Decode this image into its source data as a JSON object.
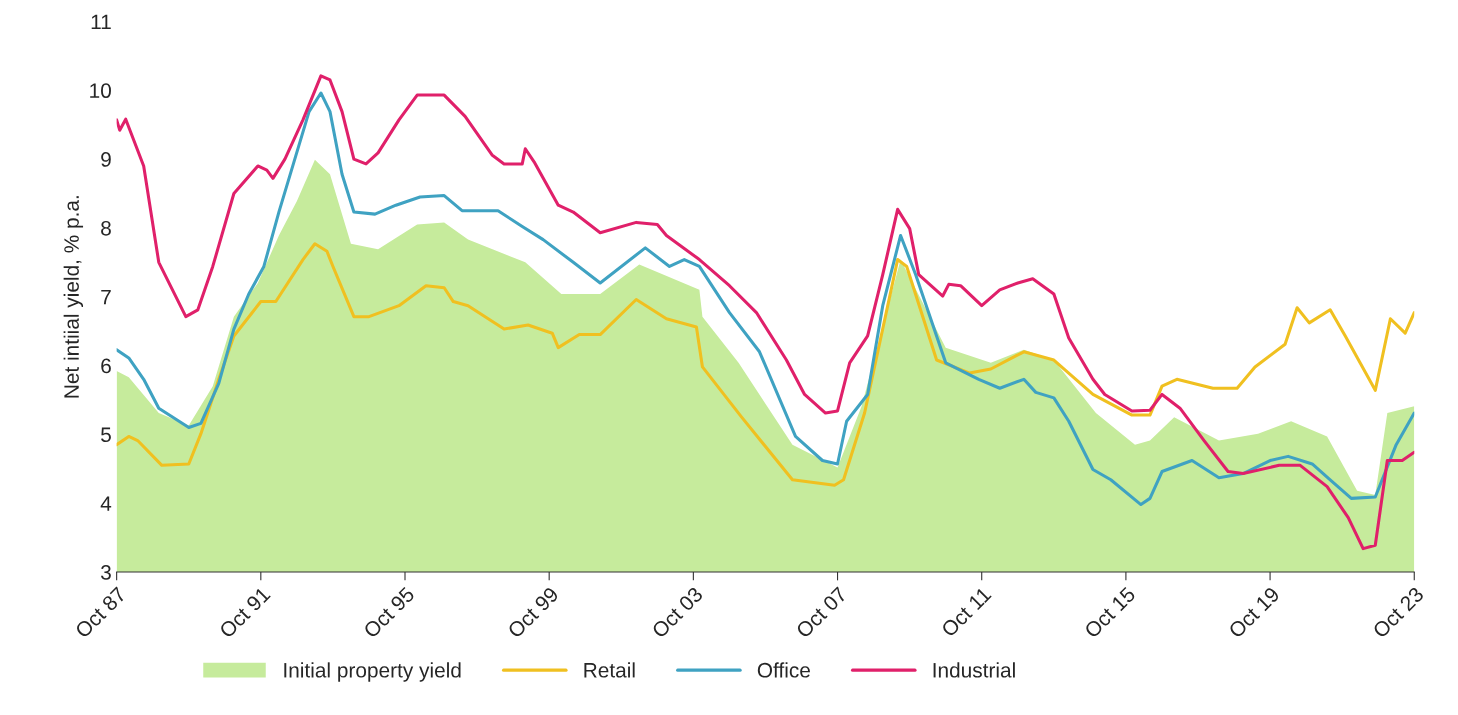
{
  "chart_data": {
    "type": "line",
    "ylabel": "Net intiial yield, % p.a.",
    "xlim": [
      "1987-10",
      "2023-10"
    ],
    "ylim": [
      3,
      11
    ],
    "yticks": [
      3,
      4,
      5,
      6,
      7,
      8,
      9,
      10,
      11
    ],
    "xticks": [
      {
        "value": "1987-10",
        "label": "Oct 87"
      },
      {
        "value": "1991-10",
        "label": "Oct 91"
      },
      {
        "value": "1995-10",
        "label": "Oct 95"
      },
      {
        "value": "1999-10",
        "label": "Oct 99"
      },
      {
        "value": "2003-10",
        "label": "Oct 03"
      },
      {
        "value": "2007-10",
        "label": "Oct 07"
      },
      {
        "value": "2011-10",
        "label": "Oct 11"
      },
      {
        "value": "2015-10",
        "label": "Oct 15"
      },
      {
        "value": "2019-10",
        "label": "Oct 19"
      },
      {
        "value": "2023-10",
        "label": "Oct 23"
      }
    ],
    "grid": false,
    "legend": "bottom",
    "series": [
      {
        "name": "Initial property yield",
        "type": "area",
        "color": "#c6eb9c",
        "x": [
          "1987-10",
          "1988-02",
          "1988-12",
          "1989-10",
          "1990-06",
          "1991-01",
          "1991-09",
          "1992-04",
          "1992-10",
          "1993-04",
          "1993-09",
          "1994-04",
          "1995-01",
          "1996-02",
          "1996-11",
          "1997-07",
          "1999-02",
          "2000-02",
          "2001-03",
          "2002-04",
          "2003-12",
          "2004-01",
          "2005-01",
          "2006-07",
          "2007-10",
          "2008-06",
          "2009-07",
          "2010-10",
          "2012-01",
          "2012-12",
          "2013-10",
          "2014-12",
          "2016-01",
          "2016-06",
          "2017-02",
          "2018-05",
          "2019-06",
          "2020-05",
          "2021-05",
          "2022-03",
          "2022-09",
          "2023-01",
          "2023-10"
        ],
        "values": [
          5.92,
          5.83,
          5.31,
          5.13,
          5.7,
          6.71,
          7.2,
          7.89,
          8.39,
          8.99,
          8.78,
          7.77,
          7.69,
          8.05,
          8.08,
          7.83,
          7.5,
          7.04,
          7.04,
          7.47,
          7.1,
          6.71,
          6.04,
          4.85,
          4.52,
          5.41,
          7.54,
          6.26,
          6.04,
          6.23,
          6.08,
          5.31,
          4.85,
          4.91,
          5.25,
          4.91,
          5.01,
          5.19,
          4.97,
          4.18,
          4.12,
          5.31,
          5.41
        ]
      },
      {
        "name": "Retail",
        "color": "#f0c020",
        "x": [
          "1987-10",
          "1988-02",
          "1988-05",
          "1989-01",
          "1989-10",
          "1990-02",
          "1990-08",
          "1991-01",
          "1991-10",
          "1992-03",
          "1992-12",
          "1993-04",
          "1993-08",
          "1993-10",
          "1994-05",
          "1994-10",
          "1995-08",
          "1996-05",
          "1996-11",
          "1997-02",
          "1997-07",
          "1998-07",
          "1999-03",
          "1999-11",
          "2000-01",
          "2000-08",
          "2001-03",
          "2002-03",
          "2003-01",
          "2003-11",
          "2004-01",
          "2005-02",
          "2006-07",
          "2007-09",
          "2007-12",
          "2008-07",
          "2009-06",
          "2009-09",
          "2010-07",
          "2011-06",
          "2012-01",
          "2012-12",
          "2013-10",
          "2014-11",
          "2015-12",
          "2016-06",
          "2016-10",
          "2017-03",
          "2018-03",
          "2018-11",
          "2019-05",
          "2020-03",
          "2020-07",
          "2020-11",
          "2021-06",
          "2021-11",
          "2022-09",
          "2023-02",
          "2023-07",
          "2023-10"
        ],
        "values": [
          4.85,
          4.97,
          4.91,
          4.55,
          4.57,
          5.01,
          5.8,
          6.43,
          6.93,
          6.93,
          7.54,
          7.77,
          7.66,
          7.44,
          6.71,
          6.71,
          6.87,
          7.16,
          7.13,
          6.93,
          6.87,
          6.53,
          6.59,
          6.47,
          6.26,
          6.45,
          6.45,
          6.96,
          6.68,
          6.56,
          5.98,
          5.25,
          4.34,
          4.26,
          4.34,
          5.31,
          7.54,
          7.44,
          6.08,
          5.89,
          5.95,
          6.2,
          6.08,
          5.58,
          5.28,
          5.28,
          5.7,
          5.8,
          5.67,
          5.67,
          5.98,
          6.31,
          6.84,
          6.62,
          6.81,
          6.43,
          5.64,
          6.68,
          6.47,
          6.77
        ]
      },
      {
        "name": "Office",
        "color": "#3fa2c2",
        "x": [
          "1987-10",
          "1988-02",
          "1988-07",
          "1988-12",
          "1989-10",
          "1990-02",
          "1990-08",
          "1991-01",
          "1991-06",
          "1991-11",
          "1992-04",
          "1992-09",
          "1993-02",
          "1993-06",
          "1993-09",
          "1994-01",
          "1994-05",
          "1994-12",
          "1995-07",
          "1996-03",
          "1996-11",
          "1997-05",
          "1998-05",
          "1999-01",
          "1999-08",
          "2000-06",
          "2001-03",
          "2002-06",
          "2003-02",
          "2003-07",
          "2003-12",
          "2004-10",
          "2005-08",
          "2006-08",
          "2007-05",
          "2007-10",
          "2008-01",
          "2008-08",
          "2009-01",
          "2009-07",
          "2009-12",
          "2010-10",
          "2011-09",
          "2012-04",
          "2012-12",
          "2013-04",
          "2013-10",
          "2014-03",
          "2014-11",
          "2015-05",
          "2016-03",
          "2016-06",
          "2016-10",
          "2017-08",
          "2018-05",
          "2019-01",
          "2019-10",
          "2020-04",
          "2020-12",
          "2021-06",
          "2022-01",
          "2022-09",
          "2023-04",
          "2023-10"
        ],
        "values": [
          6.23,
          6.11,
          5.8,
          5.38,
          5.1,
          5.16,
          5.74,
          6.53,
          7.04,
          7.44,
          8.23,
          8.96,
          9.69,
          9.96,
          9.69,
          8.78,
          8.23,
          8.2,
          8.33,
          8.45,
          8.47,
          8.25,
          8.25,
          8.02,
          7.83,
          7.5,
          7.2,
          7.71,
          7.44,
          7.54,
          7.44,
          6.77,
          6.2,
          4.97,
          4.62,
          4.57,
          5.19,
          5.58,
          6.87,
          7.89,
          7.32,
          6.04,
          5.8,
          5.67,
          5.8,
          5.61,
          5.53,
          5.19,
          4.49,
          4.34,
          3.98,
          4.07,
          4.46,
          4.62,
          4.37,
          4.43,
          4.62,
          4.68,
          4.57,
          4.34,
          4.07,
          4.09,
          4.85,
          5.31
        ]
      },
      {
        "name": "Industrial",
        "color": "#e0206a",
        "x": [
          "1987-10",
          "1987-11",
          "1988-01",
          "1988-07",
          "1988-12",
          "1989-09",
          "1990-01",
          "1990-06",
          "1991-01",
          "1991-09",
          "1991-12",
          "1992-02",
          "1992-06",
          "1992-12",
          "1993-06",
          "1993-09",
          "1994-01",
          "1994-05",
          "1994-09",
          "1995-01",
          "1995-08",
          "1996-02",
          "1996-11",
          "1997-06",
          "1998-03",
          "1998-07",
          "1999-01",
          "1999-02",
          "1999-05",
          "2000-01",
          "2000-06",
          "2001-03",
          "2002-03",
          "2002-10",
          "2003-01",
          "2003-12",
          "2004-10",
          "2005-07",
          "2006-05",
          "2006-11",
          "2007-06",
          "2007-10",
          "2008-02",
          "2008-08",
          "2009-01",
          "2009-06",
          "2009-10",
          "2010-01",
          "2010-09",
          "2010-11",
          "2011-03",
          "2011-10",
          "2012-04",
          "2012-10",
          "2013-03",
          "2013-10",
          "2014-03",
          "2014-11",
          "2015-03",
          "2015-12",
          "2016-06",
          "2016-10",
          "2017-04",
          "2017-12",
          "2018-08",
          "2019-01",
          "2020-01",
          "2020-08",
          "2021-05",
          "2021-12",
          "2022-05",
          "2022-09",
          "2023-01",
          "2023-06",
          "2023-10"
        ],
        "values": [
          9.57,
          9.42,
          9.58,
          8.9,
          7.5,
          6.71,
          6.81,
          7.44,
          8.5,
          8.9,
          8.84,
          8.72,
          9.0,
          9.57,
          10.21,
          10.15,
          9.69,
          9.0,
          8.93,
          9.09,
          9.57,
          9.93,
          9.93,
          9.62,
          9.06,
          8.93,
          8.93,
          9.15,
          8.96,
          8.33,
          8.23,
          7.93,
          8.08,
          8.05,
          7.89,
          7.54,
          7.16,
          6.77,
          6.08,
          5.58,
          5.31,
          5.34,
          6.04,
          6.43,
          7.32,
          8.27,
          7.99,
          7.32,
          7.01,
          7.18,
          7.16,
          6.87,
          7.1,
          7.2,
          7.26,
          7.04,
          6.4,
          5.8,
          5.58,
          5.34,
          5.35,
          5.58,
          5.38,
          4.91,
          4.46,
          4.43,
          4.55,
          4.55,
          4.24,
          3.79,
          3.34,
          3.39,
          4.62,
          4.62,
          4.74
        ]
      }
    ]
  }
}
